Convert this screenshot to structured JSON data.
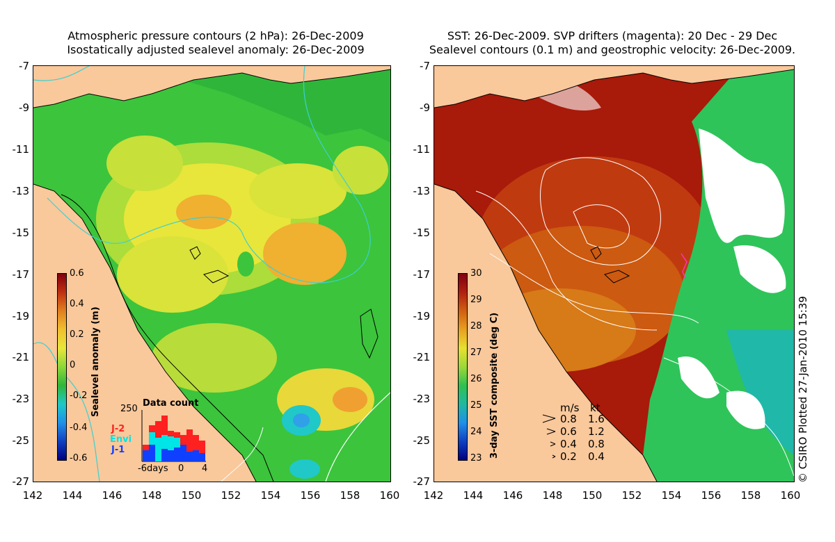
{
  "left_panel": {
    "title_line1": "Atmospheric pressure contours (2 hPa): 26-Dec-2009",
    "title_line2": "Isostatically adjusted sealevel anomaly: 26-Dec-2009",
    "colorbar": {
      "title": "Sealevel anomaly (m)",
      "labels": [
        "0.6",
        "0.4",
        "0.2",
        "0",
        "-0.2",
        "-0.4",
        "-0.6"
      ]
    },
    "data_count": {
      "title": "Data count",
      "ymax_label": "250",
      "xlabels": [
        "-6days",
        "0",
        "4"
      ],
      "legend": [
        {
          "label": "J-2",
          "color": "#ff2020"
        },
        {
          "label": "Envi",
          "color": "#00e5e5"
        },
        {
          "label": "J-1",
          "color": "#1040ff"
        }
      ]
    }
  },
  "right_panel": {
    "title_line1": "SST: 26-Dec-2009. SVP drifters (magenta): 20 Dec - 29 Dec",
    "title_line2": "Sealevel contours (0.1 m) and geostrophic velocity: 26-Dec-2009.",
    "colorbar": {
      "title": "3-day SST composite (deg C)",
      "labels": [
        "30",
        "29",
        "28",
        "27",
        "26",
        "25",
        "24",
        "23"
      ]
    },
    "velocity_legend": {
      "header_ms": "m/s",
      "header_kt": "kt",
      "rows": [
        {
          "ms": "0.8",
          "kt": "1.6"
        },
        {
          "ms": "0.6",
          "kt": "1.2"
        },
        {
          "ms": "0.4",
          "kt": "0.8"
        },
        {
          "ms": "0.2",
          "kt": "0.4"
        }
      ]
    }
  },
  "axes": {
    "y_labels": [
      "-7",
      "-9",
      "-11",
      "-13",
      "-15",
      "-17",
      "-19",
      "-21",
      "-23",
      "-25",
      "-27"
    ],
    "x_labels": [
      "142",
      "144",
      "146",
      "148",
      "150",
      "152",
      "154",
      "156",
      "158",
      "160"
    ]
  },
  "credit": "© CSIRO Plotted 27-Jan-2010 15:39",
  "colors": {
    "land": "#f9c89b",
    "sla_green": "#3cc43c",
    "sla_yellow": "#e8e63a",
    "sst_red": "#a81a0a",
    "sst_orange": "#cc5a10",
    "sst_green": "#2ec45a"
  }
}
